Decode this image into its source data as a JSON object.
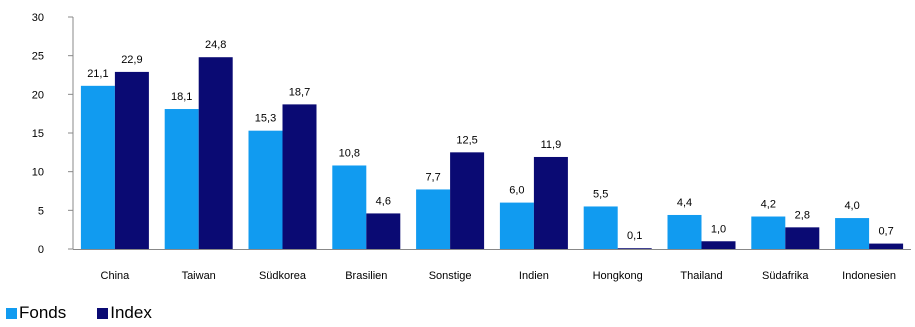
{
  "chart_data": {
    "type": "bar",
    "categories": [
      "China",
      "Taiwan",
      "Südkorea",
      "Brasilien",
      "Sonstige",
      "Indien",
      "Hongkong",
      "Thailand",
      "Südafrika",
      "Indonesien"
    ],
    "series": [
      {
        "name": "Fonds",
        "color": "#119bf0",
        "values": [
          21.1,
          18.1,
          15.3,
          10.8,
          7.7,
          6.0,
          5.5,
          4.4,
          4.2,
          4.0
        ],
        "labels": [
          "21,1",
          "18,1",
          "15,3",
          "10,8",
          "7,7",
          "6,0",
          "5,5",
          "4,4",
          "4,2",
          "4,0"
        ]
      },
      {
        "name": "Index",
        "color": "#0a0a73",
        "values": [
          22.9,
          24.8,
          18.7,
          4.6,
          12.5,
          11.9,
          0.1,
          1.0,
          2.8,
          0.7
        ],
        "labels": [
          "22,9",
          "24,8",
          "18,7",
          "4,6",
          "12,5",
          "11,9",
          "0,1",
          "1,0",
          "2,8",
          "0,7"
        ]
      }
    ],
    "yticks": [
      "0",
      "5",
      "10",
      "15",
      "20",
      "25",
      "30"
    ],
    "ylim": [
      0,
      30
    ],
    "grid": false,
    "legend": "bottom-left",
    "title": "",
    "xlabel": "",
    "ylabel": ""
  }
}
